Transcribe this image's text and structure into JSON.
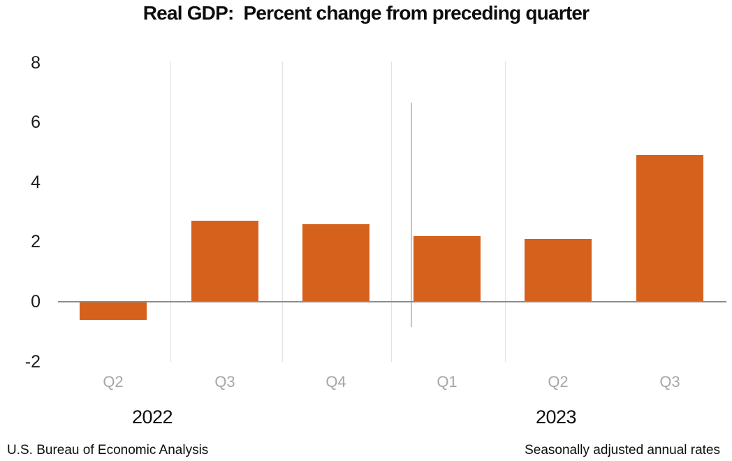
{
  "title": "Real GDP:  Percent change from preceding quarter",
  "footer": {
    "source": "U.S. Bureau of Economic Analysis",
    "note": "Seasonally adjusted annual rates"
  },
  "chart_data": {
    "type": "bar",
    "title": "Real GDP:  Percent change from preceding quarter",
    "categories": [
      "Q2 2022",
      "Q3 2022",
      "Q4 2022",
      "Q1 2023",
      "Q2 2023",
      "Q3 2023"
    ],
    "quarter_labels": [
      "Q2",
      "Q3",
      "Q4",
      "Q1",
      "Q2",
      "Q3"
    ],
    "year_labels": [
      "2022",
      "2023"
    ],
    "values": [
      -0.6,
      2.7,
      2.6,
      2.2,
      2.1,
      4.9
    ],
    "y_ticks": [
      8,
      6,
      4,
      2,
      0,
      -2
    ],
    "ylim": [
      -2,
      8
    ],
    "grid": "vertical category separators, year divider, zero baseline",
    "legend_position": "none"
  },
  "colors": {
    "bar": "#D5611D",
    "quarter_label": "#A6A6A6",
    "axis_text": "#1a1a1a",
    "zero_line": "#8C8C8C",
    "gridline_light": "#E2E2E2",
    "year_divider": "#C6C6C6"
  }
}
